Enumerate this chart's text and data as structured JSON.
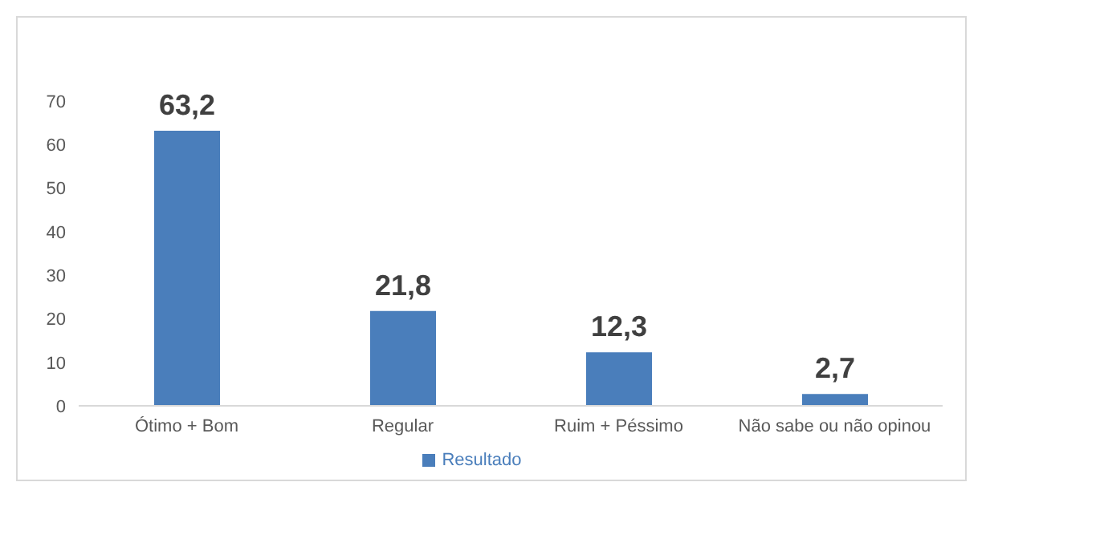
{
  "chart_data": {
    "type": "bar",
    "categories": [
      "Ótimo + Bom",
      "Regular",
      "Ruim + Péssimo",
      "Não sabe ou não opinou"
    ],
    "series": [
      {
        "name": "Resultado",
        "color": "#4a7ebb",
        "values": [
          63.2,
          21.8,
          12.3,
          2.7
        ],
        "value_labels": [
          "63,2",
          "21,8",
          "12,3",
          "2,7"
        ]
      }
    ],
    "ylim": [
      0,
      70
    ],
    "yticks": [
      0,
      10,
      20,
      30,
      40,
      50,
      60,
      70
    ],
    "grid": false,
    "legend": "bottom"
  }
}
